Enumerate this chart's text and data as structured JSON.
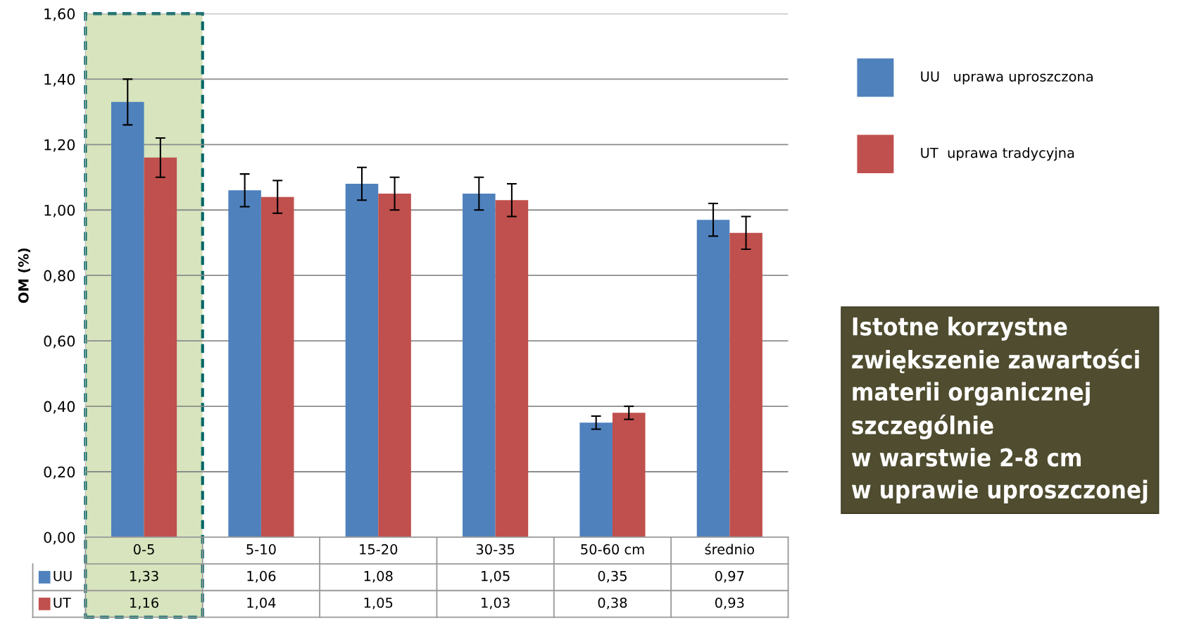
{
  "chart_data": {
    "type": "bar",
    "ylabel": "OM (%)",
    "categories": [
      "0-5",
      "5-10",
      "15-20",
      "30-35",
      "50-60 cm",
      "średnio"
    ],
    "series": [
      {
        "name": "UU",
        "color": "#4f81bd",
        "values": [
          1.33,
          1.06,
          1.08,
          1.05,
          0.35,
          0.97
        ],
        "errors": [
          0.07,
          0.05,
          0.05,
          0.05,
          0.02,
          0.05
        ],
        "value_labels": [
          "1,33",
          "1,06",
          "1,08",
          "1,05",
          "0,35",
          "0,97"
        ]
      },
      {
        "name": "UT",
        "color": "#c0504d",
        "values": [
          1.16,
          1.04,
          1.05,
          1.03,
          0.38,
          0.93
        ],
        "errors": [
          0.06,
          0.05,
          0.05,
          0.05,
          0.02,
          0.05
        ],
        "value_labels": [
          "1,16",
          "1,04",
          "1,05",
          "1,03",
          "0,38",
          "0,93"
        ]
      }
    ],
    "ylim": [
      0,
      1.6
    ],
    "yticks": [
      {
        "value": 0,
        "label": "0,00"
      },
      {
        "value": 0.2,
        "label": "0,20"
      },
      {
        "value": 0.4,
        "label": "0,40"
      },
      {
        "value": 0.6,
        "label": "0,60"
      },
      {
        "value": 0.8,
        "label": "0,80"
      },
      {
        "value": 1.0,
        "label": "1,00"
      },
      {
        "value": 1.2,
        "label": "1,20"
      },
      {
        "value": 1.4,
        "label": "1,40"
      },
      {
        "value": 1.6,
        "label": "1,60"
      }
    ],
    "grid": "y",
    "legend": "bottom left",
    "bands": [
      {
        "axis": "x",
        "from": "0-5",
        "to": "0-5",
        "color": "#d7e4bd"
      }
    ],
    "annotations": [
      "UU   uprawa uproszczona",
      "UT  uprawa tradycyjna",
      "Istotne korzystne\nzwiększenie zawartości\nmaterii organicznej\nszczególnie\nw warstwie 2-8 cm\nw uprawie uproszczonej"
    ]
  }
}
